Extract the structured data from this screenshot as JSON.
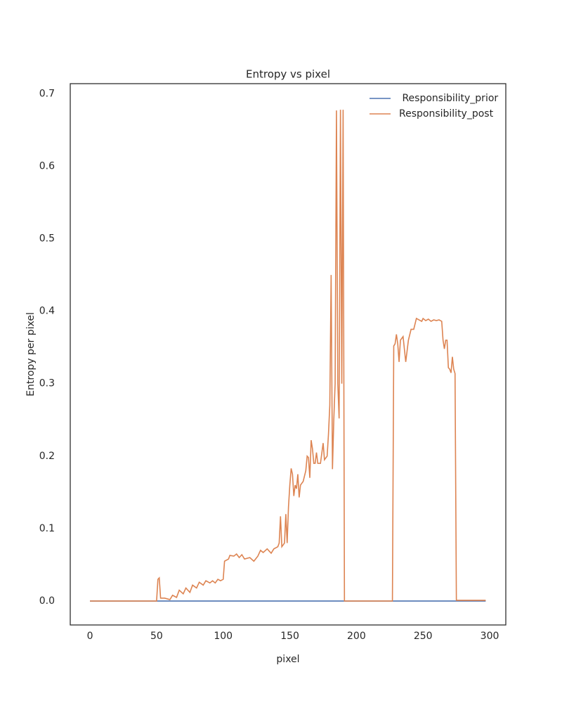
{
  "chart_data": {
    "type": "line",
    "title": "Entropy vs pixel",
    "x_label": "pixel",
    "y_label": "Entropy per pixel",
    "xlim": [
      -14.8,
      312.1
    ],
    "ylim": [
      -0.033,
      0.714
    ],
    "xticks": [
      0,
      50,
      100,
      150,
      200,
      250,
      300
    ],
    "yticks": [
      {
        "value": 0,
        "label": "0.0"
      },
      0.1,
      0.2,
      0.3,
      0.4,
      0.5,
      0.6,
      0.7
    ],
    "grid": false,
    "legend": "upper right",
    "series": [
      {
        "name": " Responsibility_prior",
        "color": "#4c72b0",
        "x": [
          0,
          297
        ],
        "values": [
          0,
          0
        ]
      },
      {
        "name": "Responsibility_post",
        "color": "#dd8452",
        "x": [
          0,
          50,
          51,
          52,
          53,
          56,
          60,
          62,
          65,
          67,
          70,
          72,
          75,
          77,
          80,
          82,
          85,
          87,
          90,
          92,
          94,
          96,
          98,
          100,
          101,
          104,
          105,
          108,
          110,
          112,
          114,
          116,
          120,
          123,
          126,
          128,
          130,
          133,
          136,
          138,
          141,
          142,
          143,
          144,
          146,
          147,
          148,
          149,
          150,
          151,
          152,
          153,
          154,
          155,
          156,
          157,
          158,
          160,
          162,
          163,
          164,
          165,
          166,
          167,
          168,
          169,
          170,
          171,
          173,
          175,
          176,
          178,
          179,
          180,
          181,
          182,
          183,
          184,
          185,
          186,
          187,
          188,
          189,
          190,
          191,
          227,
          228,
          229,
          230,
          231,
          232,
          233,
          235,
          237,
          239,
          241,
          243,
          245,
          247,
          249,
          250,
          252,
          254,
          256,
          258,
          260,
          262,
          264,
          265,
          266,
          267,
          268,
          269,
          270,
          271,
          272,
          273,
          274,
          275,
          297
        ],
        "values": [
          0,
          0,
          0.03,
          0.032,
          0.004,
          0.004,
          0.002,
          0.008,
          0.005,
          0.015,
          0.01,
          0.018,
          0.012,
          0.022,
          0.018,
          0.026,
          0.022,
          0.028,
          0.025,
          0.028,
          0.025,
          0.03,
          0.028,
          0.03,
          0.055,
          0.058,
          0.063,
          0.062,
          0.065,
          0.06,
          0.064,
          0.058,
          0.06,
          0.055,
          0.062,
          0.07,
          0.067,
          0.072,
          0.066,
          0.072,
          0.075,
          0.08,
          0.117,
          0.075,
          0.08,
          0.12,
          0.08,
          0.13,
          0.16,
          0.183,
          0.175,
          0.145,
          0.16,
          0.155,
          0.175,
          0.143,
          0.16,
          0.165,
          0.18,
          0.2,
          0.198,
          0.17,
          0.222,
          0.21,
          0.19,
          0.19,
          0.205,
          0.19,
          0.19,
          0.218,
          0.195,
          0.2,
          0.23,
          0.27,
          0.45,
          0.182,
          0.25,
          0.3,
          0.677,
          0.3,
          0.252,
          0.678,
          0.3,
          0.678,
          0,
          0,
          0.352,
          0.355,
          0.368,
          0.355,
          0.33,
          0.36,
          0.365,
          0.33,
          0.36,
          0.375,
          0.375,
          0.39,
          0.388,
          0.386,
          0.39,
          0.387,
          0.389,
          0.386,
          0.388,
          0.387,
          0.388,
          0.386,
          0.36,
          0.348,
          0.36,
          0.36,
          0.322,
          0.32,
          0.315,
          0.337,
          0.32,
          0.314,
          0.001,
          0.001
        ]
      }
    ]
  }
}
